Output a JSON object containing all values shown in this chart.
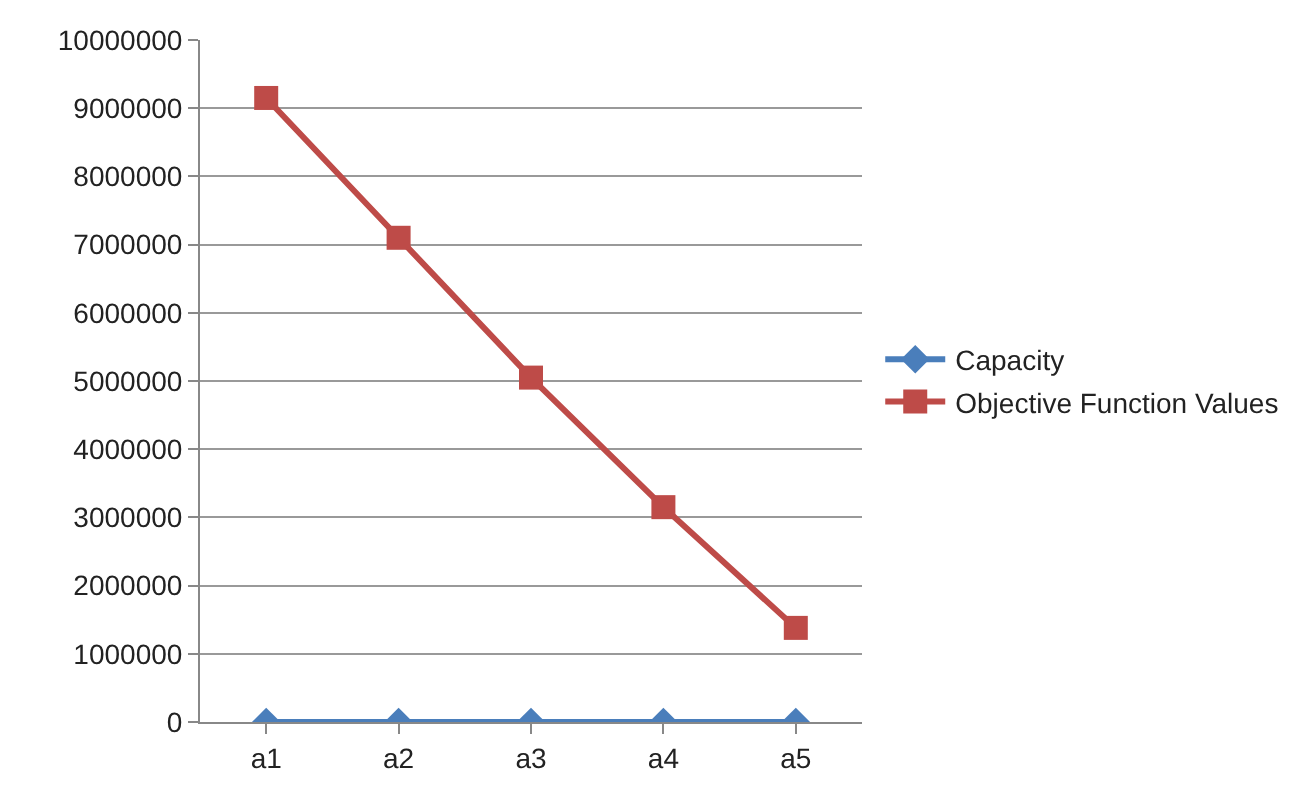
{
  "chart_data": {
    "type": "line",
    "categories": [
      "a1",
      "a2",
      "a3",
      "a4",
      "a5"
    ],
    "series": [
      {
        "name": "Capacity",
        "color": "#4a7ebb",
        "marker": "diamond",
        "values": [
          0,
          0,
          0,
          0,
          0
        ]
      },
      {
        "name": "Objective Function Values",
        "color": "#be4b48",
        "marker": "square",
        "values": [
          9150000,
          7100000,
          5050000,
          3150000,
          1380000
        ]
      }
    ],
    "ylim": [
      0,
      10000000
    ],
    "yticks": [
      0,
      1000000,
      2000000,
      3000000,
      4000000,
      5000000,
      6000000,
      7000000,
      8000000,
      9000000,
      10000000
    ],
    "grid": "y",
    "legend": "right",
    "line_style": "solid"
  }
}
